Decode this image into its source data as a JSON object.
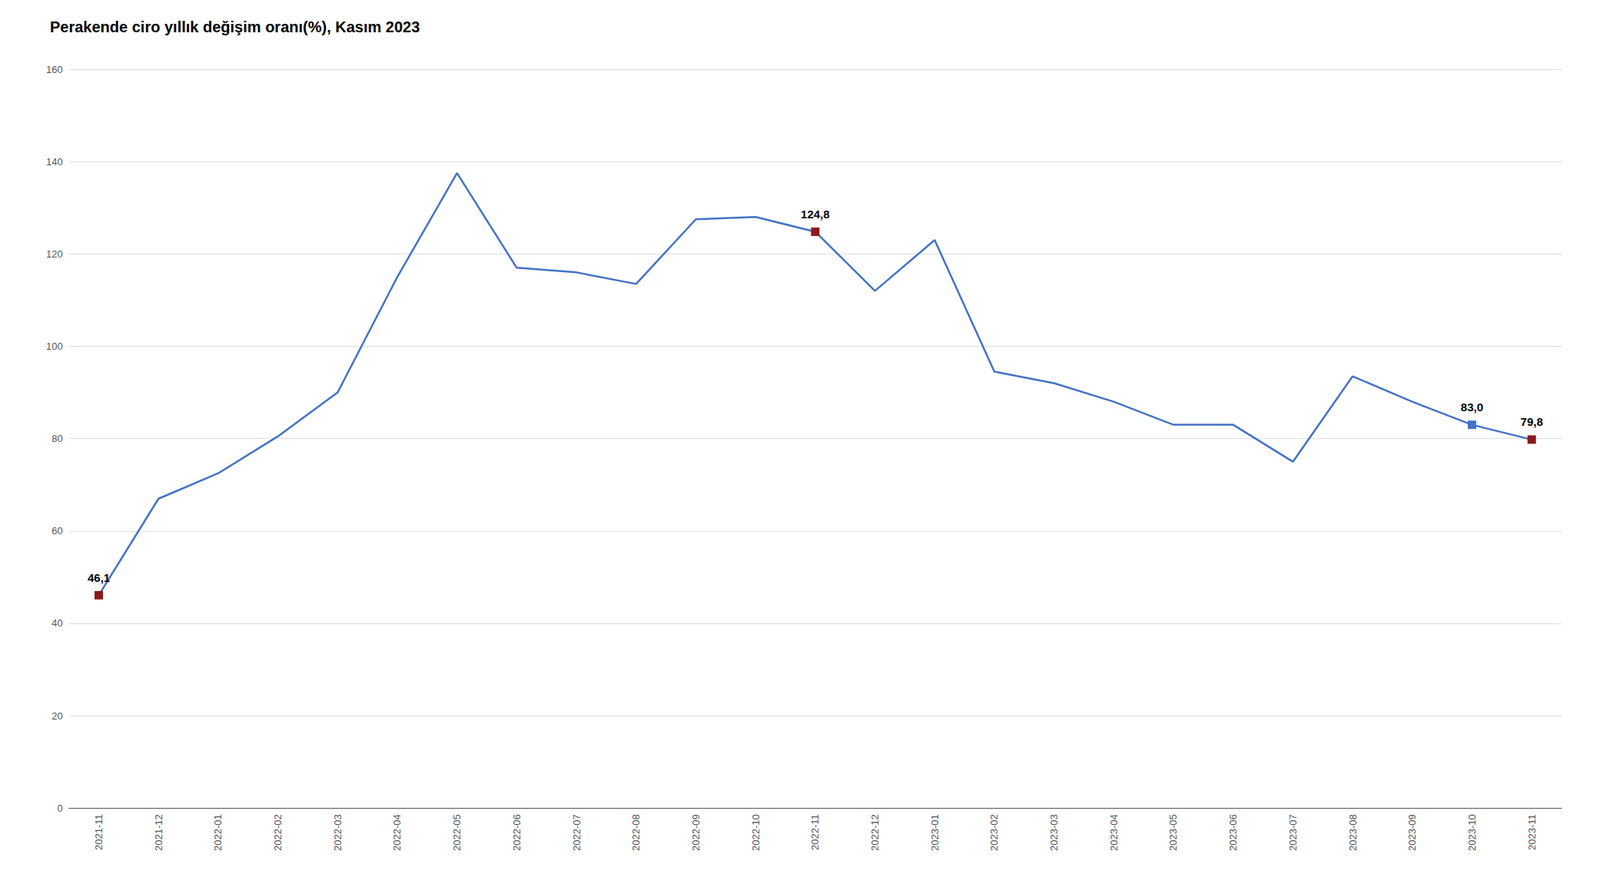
{
  "chart_data": {
    "type": "line",
    "title": "Perakende ciro yıllık değişim oranı(%), Kasım 2023",
    "categories": [
      "2021-11",
      "2021-12",
      "2022-01",
      "2022-02",
      "2022-03",
      "2022-04",
      "2022-05",
      "2022-06",
      "2022-07",
      "2022-08",
      "2022-09",
      "2022-10",
      "2022-11",
      "2022-12",
      "2023-01",
      "2023-02",
      "2023-03",
      "2023-04",
      "2023-05",
      "2023-06",
      "2023-07",
      "2023-08",
      "2023-09",
      "2023-10",
      "2023-11"
    ],
    "values": [
      46.1,
      67.0,
      72.5,
      80.5,
      90.0,
      115.0,
      137.5,
      117.0,
      116.0,
      113.5,
      127.5,
      128.0,
      124.8,
      112.0,
      123.0,
      94.5,
      92.0,
      88.0,
      83.0,
      83.0,
      75.0,
      93.5,
      88.0,
      83.0,
      79.8
    ],
    "value_labels": [
      "46,1",
      null,
      null,
      null,
      null,
      null,
      null,
      null,
      null,
      null,
      null,
      null,
      "124,8",
      null,
      null,
      null,
      null,
      null,
      null,
      null,
      null,
      null,
      null,
      "83,0",
      "79,8"
    ],
    "color": "#4472C4",
    "marker": "square",
    "colors": [
      "#8B1A1A",
      null,
      null,
      null,
      null,
      null,
      null,
      null,
      null,
      null,
      null,
      null,
      "#8B1A1A",
      null,
      null,
      null,
      null,
      null,
      null,
      null,
      null,
      null,
      null,
      "#4472C4",
      "#8B1A1A"
    ],
    "ylim": [
      0,
      160
    ],
    "yticks": [
      0,
      20,
      40,
      60,
      80,
      100,
      120,
      140,
      160
    ],
    "grid": true
  }
}
